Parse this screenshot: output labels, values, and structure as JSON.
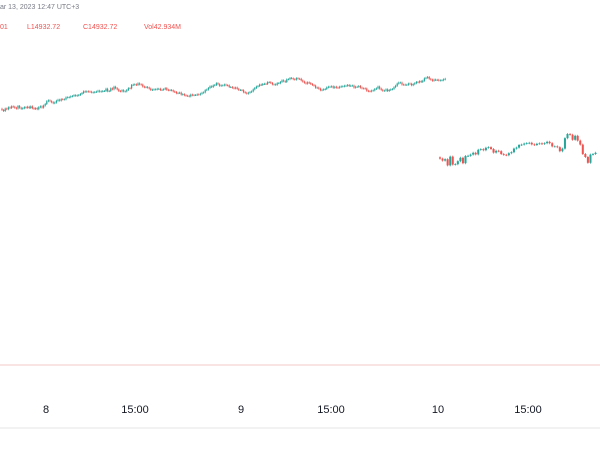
{
  "legend": {
    "date": "ar 13, 2023 12:47 UTC+3",
    "open_tail": "01",
    "low": "L14932.72",
    "close": "C14932.72",
    "volume": "Vol42.934M"
  },
  "colors": {
    "up": "#26a69a",
    "down": "#ef5350",
    "baseline": "#f4c7c7",
    "axis_line": "#e6e6e6"
  },
  "chart_data": {
    "type": "candlestick",
    "title": "",
    "xlabel": "",
    "ylabel": "",
    "x_tick_labels": [
      "8",
      "15:00",
      "9",
      "15:00",
      "10",
      "15:00"
    ],
    "segments": [
      {
        "name": "session-1",
        "close": [
          -5,
          -5.5,
          -4.3,
          -4.6,
          -3.7,
          -4.0,
          -3.2,
          -3.4,
          -3.9,
          -4.3,
          -3.0,
          -3.9,
          -4.4,
          -4.1,
          -3.6,
          -3.9,
          -3.4,
          -4.0,
          -3.2,
          -4.1,
          -4.5,
          -4.1,
          -4.6,
          -3.6,
          -3.2,
          -3.8,
          -2.8,
          -2.0,
          -0.6,
          -0.2,
          -0.6,
          -1.1,
          -1.6,
          -1.3,
          -0.4,
          0.1,
          -0.3,
          0.4,
          0.3,
          0.3,
          1.3,
          1.3,
          1.4,
          1.8,
          2.0,
          2.4,
          2.1,
          2.3,
          2.5,
          3.0,
          3.5,
          4.3,
          4.1,
          4.3,
          4.2,
          4.1,
          3.8,
          3.8,
          4.0,
          4.2,
          4.6,
          4.2,
          4.3,
          4.5,
          4.5,
          5.6,
          4.4,
          4.5,
          5.8,
          5.3,
          6.6,
          5.9,
          5.3,
          4.5,
          4.3,
          4.9,
          4.3,
          4.3,
          5.0,
          5.9,
          5.8,
          7.5,
          7.7,
          7.8,
          7.5,
          8.3,
          7.8,
          7.7,
          6.7,
          6.4,
          6.5,
          6.2,
          5.7,
          5.0,
          5.2,
          5.3,
          5.3,
          5.6,
          5.6,
          5.0,
          5.1,
          5.4,
          5.9,
          5.1,
          4.9,
          5.0,
          4.8,
          4.3,
          4.0,
          3.4,
          3.5,
          3.7,
          2.7,
          2.9,
          2.4,
          2.1,
          2.1,
          1.8,
          2.7,
          2.4,
          2.5,
          2.5,
          2.8,
          2.7,
          3.1,
          3.6,
          3.8,
          4.9,
          5.2,
          6.0,
          6.8,
          6.5,
          7.3,
          7.5,
          8.4,
          7.9,
          7.1,
          7.3,
          7.3,
          7.7,
          7.4,
          7.3,
          6.5,
          6.5,
          6.1,
          5.8,
          6.2,
          5.6,
          5.0,
          5.0,
          4.9,
          3.9,
          3.6,
          3.2,
          3.6,
          4.0,
          4.3,
          5.3,
          6.0,
          6.7,
          7.0,
          7.7,
          7.5,
          8.0,
          8.1,
          8.0,
          8.9,
          8.9,
          8.5,
          7.8,
          7.8,
          7.6,
          8.4,
          8.4,
          9.0,
          9.8,
          9.4,
          9.0,
          10.3,
          10.4,
          11.0,
          10.8,
          10.4,
          10.2,
          10.9,
          10.6,
          10.6,
          9.8,
          9.2,
          8.6,
          8.2,
          8.8,
          8.5,
          8.0,
          7.5,
          7.2,
          6.1,
          6.2,
          5.7,
          4.9,
          5.1,
          5.3,
          5.5,
          6.3,
          6.6,
          6.6,
          6.8,
          6.1,
          6.6,
          6.2,
          6.1,
          6.6,
          6.8,
          6.8,
          7.1,
          7.1,
          7.5,
          7.0,
          7.2,
          7.2,
          6.2,
          6.6,
          6.6,
          7.0,
          6.2,
          5.8,
          5.8,
          5.7,
          4.6,
          4.4,
          4.3,
          4.7,
          4.8,
          5.5,
          5.8,
          6.7,
          5.7,
          5.1,
          4.6,
          4.7,
          5.3,
          4.5,
          5.0,
          5.3,
          5.5,
          6.4,
          7.1,
          8.2,
          8.7,
          8.7,
          7.7,
          7.7,
          7.6,
          7.6,
          8.2,
          8.1,
          7.4,
          7.9,
          8.4,
          9.0,
          8.8,
          9.4,
          9.0,
          9.6,
          10.8,
          11.1,
          11.5,
          10.6,
          10.2,
          9.6,
          10.2,
          10.0,
          10.1,
          9.8,
          9.8,
          9.9,
          10.3,
          10.6
        ]
      },
      {
        "name": "session-2",
        "close": [
          -29.3,
          -30.3,
          -29.6,
          -32.7,
          -28.3,
          -32.3,
          -32.1,
          -30.6,
          -28.9,
          -31.6,
          -28.0,
          -27.9,
          -27.3,
          -26.4,
          -27.2,
          -24.9,
          -24.6,
          -25.1,
          -23.9,
          -23.6,
          -24.5,
          -26.3,
          -25.4,
          -25.6,
          -27.0,
          -27.4,
          -27.6,
          -26.6,
          -26.1,
          -24.3,
          -23.8,
          -22.5,
          -22.3,
          -21.8,
          -21.6,
          -21.4,
          -22.2,
          -22.5,
          -21.9,
          -21.7,
          -22.0,
          -21.6,
          -20.9,
          -21.6,
          -23.2,
          -23.2,
          -23.6,
          -25.6,
          -24.3,
          -19.1,
          -17.0,
          -17.4,
          -19.9,
          -17.9,
          -20.3,
          -22.3,
          -27.0,
          -28.5,
          -31.4,
          -27.3,
          -27.0,
          -26.4
        ]
      }
    ]
  }
}
